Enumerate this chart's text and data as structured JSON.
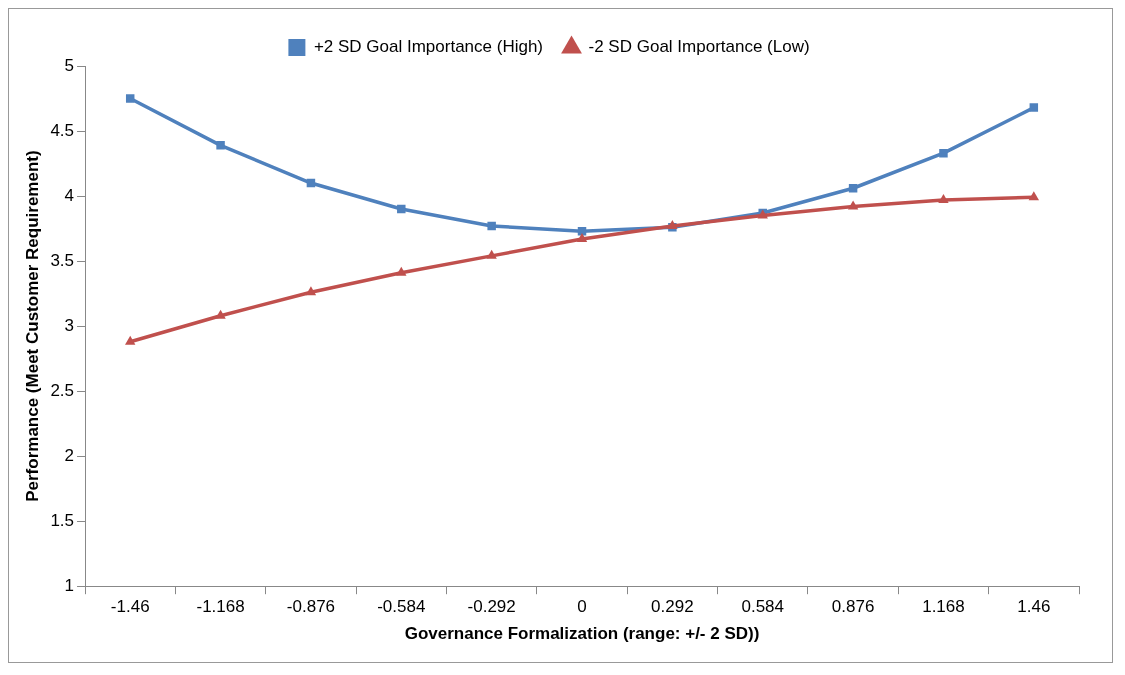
{
  "chart_data": {
    "type": "line",
    "xlabel": "Governance Formalization (range: +/- 2 SD))",
    "ylabel": "Performance (Meet Customer Requirement)",
    "categories": [
      "-1.46",
      "-1.168",
      "-0.876",
      "-0.584",
      "-0.292",
      "0",
      "0.292",
      "0.584",
      "0.876",
      "1.168",
      "1.46"
    ],
    "series": [
      {
        "name": "+2 SD Goal Importance (High)",
        "color": "#4f81bd",
        "marker": "square",
        "values": [
          4.75,
          4.39,
          4.1,
          3.9,
          3.77,
          3.73,
          3.76,
          3.87,
          4.06,
          4.33,
          4.68
        ]
      },
      {
        "name": "-2 SD Goal Importance (Low)",
        "color": "#c0504d",
        "marker": "triangle",
        "values": [
          2.88,
          3.08,
          3.26,
          3.41,
          3.54,
          3.67,
          3.77,
          3.85,
          3.92,
          3.97,
          3.99
        ]
      }
    ],
    "ylim": [
      1,
      5
    ],
    "yticks": [
      1,
      1.5,
      2,
      2.5,
      3,
      3.5,
      4,
      4.5,
      5
    ],
    "grid": false,
    "legend": "top",
    "line_style": "solid"
  }
}
